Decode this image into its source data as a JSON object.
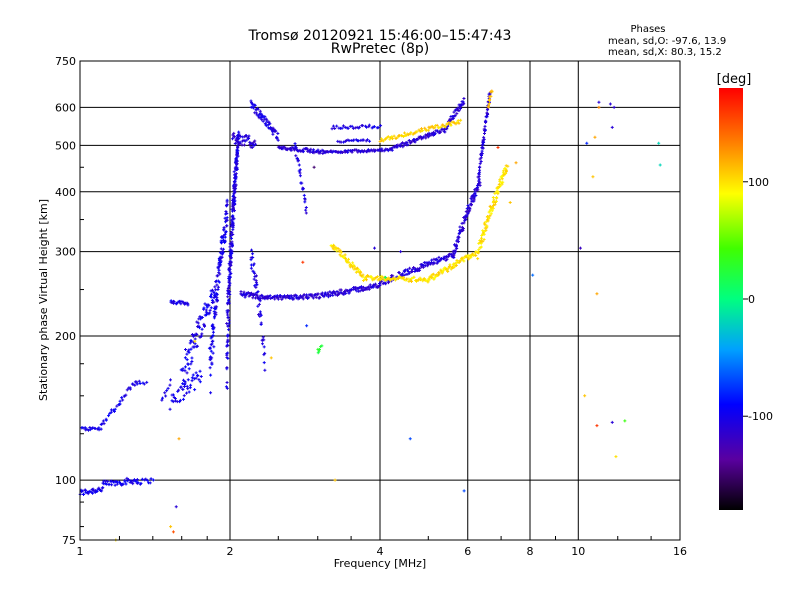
{
  "chart_data": {
    "type": "scatter",
    "title": "Tromsø 20120921 15:46:00–15:47:43",
    "subtitle": "RwPretec (8p)",
    "xlabel": "Frequency [MHz]",
    "ylabel": "Stationary phase Virtual Height [km]",
    "x_scale": "log",
    "y_scale": "log",
    "xlim": [
      1,
      16
    ],
    "ylim": [
      75,
      750
    ],
    "grid": true,
    "x_ticks": [
      "1",
      "2",
      "4",
      "6",
      "8",
      "10",
      "16"
    ],
    "x_tick_values": [
      1,
      2,
      4,
      6,
      8,
      10,
      16
    ],
    "y_ticks": [
      "750",
      "600",
      "500",
      "400",
      "300",
      "200",
      "100",
      "75"
    ],
    "y_tick_values": [
      750,
      600,
      500,
      400,
      300,
      200,
      100,
      75
    ],
    "stats": {
      "heading": "Phases",
      "line1": "mean, sd,O:  -97.6, 13.9",
      "line2": "mean, sd,X:  80.3, 15.2"
    },
    "colorbar": {
      "unit": "[deg]",
      "range": [
        -180,
        180
      ],
      "ticks": [
        "100",
        "0",
        "-100"
      ],
      "tick_values": [
        100,
        0,
        -100
      ]
    },
    "traces": [
      {
        "f0": 1.0,
        "f1": 1.11,
        "h0": 94,
        "h1": 96,
        "phase": -100,
        "n": 30,
        "jitter": 1.5
      },
      {
        "f0": 1.11,
        "f1": 1.3,
        "h0": 98,
        "h1": 100,
        "phase": -100,
        "n": 40,
        "jitter": 1.5
      },
      {
        "f0": 1.3,
        "f1": 1.4,
        "h0": 99,
        "h1": 100,
        "phase": -100,
        "n": 12,
        "jitter": 1.2
      },
      {
        "f0": 1.0,
        "f1": 1.1,
        "h0": 128,
        "h1": 128,
        "phase": -100,
        "n": 18,
        "jitter": 1
      },
      {
        "f0": 1.1,
        "f1": 1.2,
        "h0": 130,
        "h1": 145,
        "phase": -100,
        "n": 16,
        "jitter": 2
      },
      {
        "f0": 1.2,
        "f1": 1.3,
        "h0": 145,
        "h1": 162,
        "phase": -100,
        "n": 16,
        "jitter": 2
      },
      {
        "f0": 1.3,
        "f1": 1.36,
        "h0": 160,
        "h1": 160,
        "phase": -100,
        "n": 6,
        "jitter": 1.5
      },
      {
        "f0": 1.46,
        "f1": 1.52,
        "h0": 146,
        "h1": 160,
        "phase": -105,
        "n": 8,
        "jitter": 3
      },
      {
        "f0": 1.52,
        "f1": 1.65,
        "h0": 235,
        "h1": 234,
        "phase": -100,
        "n": 22,
        "jitter": 2
      },
      {
        "f0": 1.52,
        "f1": 1.75,
        "h0": 145,
        "h1": 165,
        "phase": -100,
        "n": 40,
        "jitter": 6
      },
      {
        "f0": 1.6,
        "f1": 1.88,
        "h0": 165,
        "h1": 250,
        "phase": -100,
        "n": 90,
        "jitter": 14
      },
      {
        "f0": 1.82,
        "f1": 1.98,
        "h0": 165,
        "h1": 370,
        "phase": -100,
        "n": 120,
        "jitter": 22
      },
      {
        "f0": 1.97,
        "f1": 2.08,
        "h0": 180,
        "h1": 520,
        "phase": -105,
        "n": 240,
        "jitter": 28
      },
      {
        "f0": 2.02,
        "f1": 2.25,
        "h0": 520,
        "h1": 505,
        "phase": -110,
        "n": 40,
        "jitter": 14
      },
      {
        "f0": 2.2,
        "f1": 2.5,
        "h0": 610,
        "h1": 520,
        "phase": -105,
        "n": 60,
        "jitter": 10
      },
      {
        "f0": 2.2,
        "f1": 2.35,
        "h0": 300,
        "h1": 180,
        "phase": -105,
        "n": 45,
        "jitter": 14
      },
      {
        "f0": 2.1,
        "f1": 2.35,
        "h0": 245,
        "h1": 240,
        "phase": -110,
        "n": 40,
        "jitter": 3
      },
      {
        "f0": 2.35,
        "f1": 3.0,
        "h0": 240,
        "h1": 242,
        "phase": -110,
        "n": 70,
        "jitter": 2.5
      },
      {
        "f0": 3.0,
        "f1": 4.0,
        "h0": 242,
        "h1": 255,
        "phase": -110,
        "n": 90,
        "jitter": 3
      },
      {
        "f0": 4.0,
        "f1": 5.6,
        "h0": 258,
        "h1": 295,
        "phase": -110,
        "n": 110,
        "jitter": 4
      },
      {
        "f0": 5.6,
        "f1": 6.35,
        "h0": 295,
        "h1": 420,
        "phase": -110,
        "n": 90,
        "jitter": 8
      },
      {
        "f0": 6.3,
        "f1": 6.65,
        "h0": 420,
        "h1": 640,
        "phase": -110,
        "n": 60,
        "jitter": 10
      },
      {
        "f0": 2.5,
        "f1": 3.1,
        "h0": 495,
        "h1": 484,
        "phase": -110,
        "n": 60,
        "jitter": 4
      },
      {
        "f0": 3.1,
        "f1": 4.2,
        "h0": 484,
        "h1": 490,
        "phase": -110,
        "n": 70,
        "jitter": 3
      },
      {
        "f0": 4.2,
        "f1": 5.4,
        "h0": 490,
        "h1": 540,
        "phase": -110,
        "n": 70,
        "jitter": 5
      },
      {
        "f0": 5.4,
        "f1": 5.9,
        "h0": 540,
        "h1": 620,
        "phase": -110,
        "n": 40,
        "jitter": 8
      },
      {
        "f0": 2.7,
        "f1": 2.85,
        "h0": 500,
        "h1": 360,
        "phase": -105,
        "n": 25,
        "jitter": 8
      },
      {
        "f0": 3.2,
        "f1": 4.0,
        "h0": 545,
        "h1": 548,
        "phase": -105,
        "n": 30,
        "jitter": 4
      },
      {
        "f0": 3.3,
        "f1": 3.8,
        "h0": 510,
        "h1": 512,
        "phase": -105,
        "n": 20,
        "jitter": 3
      },
      {
        "f0": 3.2,
        "f1": 3.7,
        "h0": 310,
        "h1": 265,
        "phase": 100,
        "n": 50,
        "jitter": 4
      },
      {
        "f0": 3.7,
        "f1": 5.0,
        "h0": 265,
        "h1": 262,
        "phase": 100,
        "n": 70,
        "jitter": 3
      },
      {
        "f0": 5.0,
        "f1": 6.3,
        "h0": 262,
        "h1": 300,
        "phase": 100,
        "n": 80,
        "jitter": 4
      },
      {
        "f0": 6.3,
        "f1": 7.2,
        "h0": 300,
        "h1": 450,
        "phase": 100,
        "n": 90,
        "jitter": 10
      },
      {
        "f0": 4.0,
        "f1": 5.8,
        "h0": 512,
        "h1": 560,
        "phase": 105,
        "n": 70,
        "jitter": 5
      },
      {
        "f0": 6.6,
        "f1": 6.7,
        "h0": 600,
        "h1": 650,
        "phase": 110,
        "n": 10,
        "jitter": 8
      },
      {
        "f0": 3.0,
        "f1": 3.05,
        "h0": 185,
        "h1": 190,
        "phase": 25,
        "n": 6,
        "jitter": 2
      }
    ],
    "scatter_points": [
      {
        "f": 1.18,
        "h": 75,
        "phase": 100
      },
      {
        "f": 1.52,
        "h": 80,
        "phase": 110
      },
      {
        "f": 1.54,
        "h": 78,
        "phase": 150
      },
      {
        "f": 1.56,
        "h": 88,
        "phase": -110
      },
      {
        "f": 1.58,
        "h": 122,
        "phase": 120
      },
      {
        "f": 1.7,
        "h": 195,
        "phase": 100
      },
      {
        "f": 2.42,
        "h": 180,
        "phase": 110
      },
      {
        "f": 2.8,
        "h": 285,
        "phase": 160
      },
      {
        "f": 2.85,
        "h": 210,
        "phase": -80
      },
      {
        "f": 2.95,
        "h": 450,
        "phase": -150
      },
      {
        "f": 3.25,
        "h": 100,
        "phase": 110
      },
      {
        "f": 3.9,
        "h": 305,
        "phase": -110
      },
      {
        "f": 4.4,
        "h": 300,
        "phase": -110
      },
      {
        "f": 4.1,
        "h": 265,
        "phase": 10
      },
      {
        "f": 4.6,
        "h": 122,
        "phase": -70
      },
      {
        "f": 5.9,
        "h": 95,
        "phase": -70
      },
      {
        "f": 6.9,
        "h": 495,
        "phase": 160
      },
      {
        "f": 7.3,
        "h": 380,
        "phase": 110
      },
      {
        "f": 7.5,
        "h": 460,
        "phase": 120
      },
      {
        "f": 8.1,
        "h": 268,
        "phase": -60
      },
      {
        "f": 10.1,
        "h": 305,
        "phase": -120
      },
      {
        "f": 10.3,
        "h": 150,
        "phase": 110
      },
      {
        "f": 10.4,
        "h": 505,
        "phase": -80
      },
      {
        "f": 10.7,
        "h": 430,
        "phase": 110
      },
      {
        "f": 10.8,
        "h": 520,
        "phase": 120
      },
      {
        "f": 10.9,
        "h": 245,
        "phase": 120
      },
      {
        "f": 11.0,
        "h": 600,
        "phase": 130
      },
      {
        "f": 11.0,
        "h": 615,
        "phase": -110
      },
      {
        "f": 11.6,
        "h": 610,
        "phase": -110
      },
      {
        "f": 11.7,
        "h": 545,
        "phase": -110
      },
      {
        "f": 11.8,
        "h": 600,
        "phase": -110
      },
      {
        "f": 11.7,
        "h": 132,
        "phase": -110
      },
      {
        "f": 11.9,
        "h": 112,
        "phase": 100
      },
      {
        "f": 12.4,
        "h": 133,
        "phase": 40
      },
      {
        "f": 10.9,
        "h": 130,
        "phase": 160
      },
      {
        "f": 14.5,
        "h": 505,
        "phase": -20
      },
      {
        "f": 14.6,
        "h": 455,
        "phase": -20
      }
    ]
  }
}
